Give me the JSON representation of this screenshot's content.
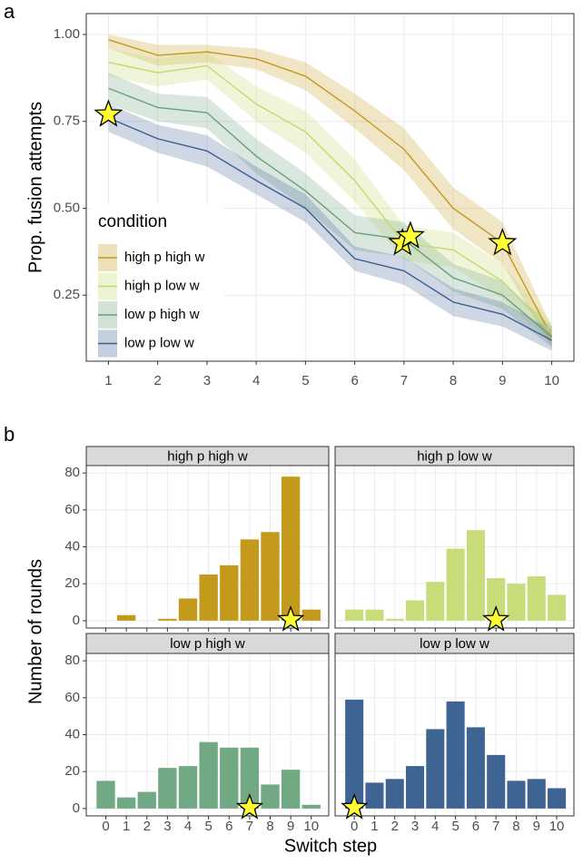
{
  "chart_data": [
    {
      "type": "line",
      "panel_label": "a",
      "ylabel": "Prop. fusion attempts",
      "x": [
        1,
        2,
        3,
        4,
        5,
        6,
        7,
        8,
        9,
        10
      ],
      "xlim": [
        0.55,
        10.45
      ],
      "xticks": [
        1,
        2,
        3,
        4,
        5,
        6,
        7,
        8,
        9,
        10
      ],
      "ylim": [
        0.06,
        1.06
      ],
      "yticks": [
        0.25,
        {
          "value": 0.5,
          "label": "0.50"
        },
        0.75,
        {
          "value": 1,
          "label": "1.00"
        }
      ],
      "grid": true,
      "legend_title": "condition",
      "legend_position": "center-left",
      "series": [
        {
          "name": "high p high w",
          "color": "#C49A1C",
          "values": [
            0.985,
            0.94,
            0.95,
            0.93,
            0.88,
            0.78,
            0.67,
            0.5,
            0.4,
            0.13
          ],
          "lower": [
            0.96,
            0.91,
            0.92,
            0.9,
            0.84,
            0.73,
            0.61,
            0.44,
            0.34,
            0.1
          ],
          "upper": [
            1.0,
            0.97,
            0.97,
            0.96,
            0.92,
            0.83,
            0.73,
            0.56,
            0.46,
            0.16
          ]
        },
        {
          "name": "high p low w",
          "color": "#C3D96B",
          "values": [
            0.92,
            0.89,
            0.91,
            0.8,
            0.72,
            0.58,
            0.4,
            0.38,
            0.29,
            0.14
          ],
          "lower": [
            0.88,
            0.85,
            0.87,
            0.75,
            0.66,
            0.52,
            0.35,
            0.33,
            0.24,
            0.11
          ],
          "upper": [
            0.96,
            0.93,
            0.95,
            0.85,
            0.78,
            0.64,
            0.45,
            0.43,
            0.34,
            0.17
          ]
        },
        {
          "name": "low p high w",
          "color": "#6A9F7A",
          "values": [
            0.845,
            0.79,
            0.775,
            0.65,
            0.55,
            0.43,
            0.41,
            0.3,
            0.25,
            0.13
          ],
          "lower": [
            0.8,
            0.75,
            0.73,
            0.6,
            0.5,
            0.38,
            0.36,
            0.26,
            0.21,
            0.1
          ],
          "upper": [
            0.89,
            0.83,
            0.82,
            0.7,
            0.6,
            0.48,
            0.46,
            0.34,
            0.29,
            0.16
          ]
        },
        {
          "name": "low p low w",
          "color": "#3A5F8F",
          "values": [
            0.76,
            0.7,
            0.665,
            0.58,
            0.5,
            0.355,
            0.32,
            0.23,
            0.195,
            0.12
          ],
          "lower": [
            0.72,
            0.66,
            0.62,
            0.54,
            0.46,
            0.32,
            0.28,
            0.19,
            0.16,
            0.09
          ],
          "upper": [
            0.8,
            0.74,
            0.71,
            0.62,
            0.54,
            0.39,
            0.36,
            0.27,
            0.23,
            0.15
          ]
        }
      ],
      "stars": {
        "x": [
          1,
          6.97,
          7.13,
          9
        ],
        "y": [
          0.77,
          0.4,
          0.42,
          0.4
        ],
        "color": "#FFFF33"
      }
    },
    {
      "type": "bar",
      "panel_label": "b",
      "ylabel": "Number of rounds",
      "xlabel": "Switch step",
      "categories": [
        0,
        1,
        2,
        3,
        4,
        5,
        6,
        7,
        8,
        9,
        10
      ],
      "xlim": [
        -0.95,
        10.85
      ],
      "ylim": [
        -4,
        84
      ],
      "yticks": [
        0,
        20,
        40,
        60,
        80
      ],
      "grid": true,
      "star_color": "#FFFF33",
      "facets": [
        {
          "title": "high p high w",
          "color": "#C49A1C",
          "values": [
            0,
            3,
            0,
            1,
            12,
            25,
            30,
            44,
            48,
            78,
            6
          ],
          "star_x": 9
        },
        {
          "title": "high p low w",
          "color": "#C8DC7A",
          "values": [
            6,
            6,
            1,
            11,
            21,
            39,
            49,
            23,
            20,
            24,
            14
          ],
          "star_x": 7
        },
        {
          "title": "low p high w",
          "color": "#72A985",
          "values": [
            15,
            6,
            9,
            22,
            23,
            36,
            33,
            33,
            13,
            21,
            2
          ],
          "star_x": 7
        },
        {
          "title": "low p low w",
          "color": "#3E6494",
          "values": [
            59,
            14,
            16,
            23,
            43,
            58,
            44,
            29,
            15,
            16,
            11
          ],
          "star_x": 0
        }
      ]
    }
  ]
}
